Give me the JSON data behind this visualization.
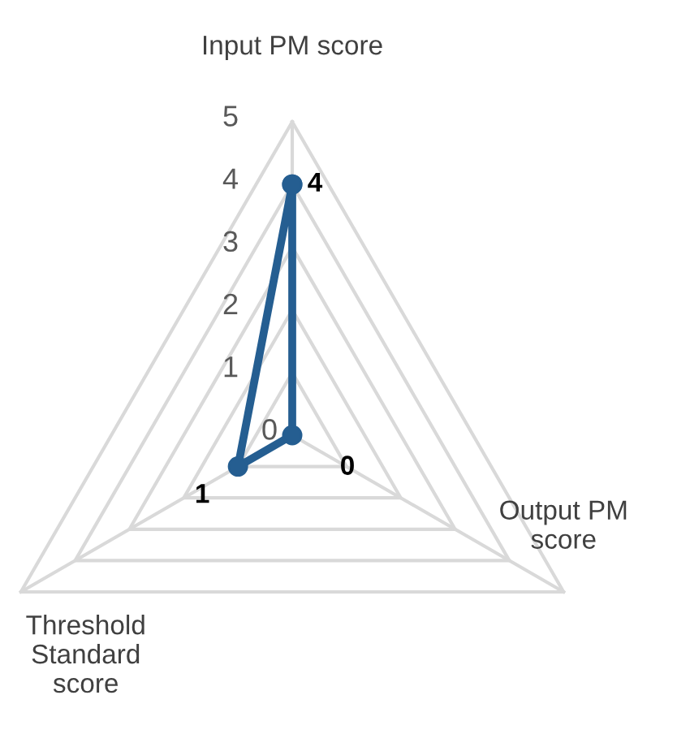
{
  "chart_data": {
    "type": "radar",
    "categories": [
      "Input PM score",
      "Output PM score",
      "Threshold Standard score"
    ],
    "series": [
      {
        "color": "#255e91",
        "values": [
          4,
          0,
          1
        ]
      }
    ],
    "ylim": [
      0,
      5
    ],
    "yticks": [
      0,
      1,
      2,
      3,
      4,
      5
    ],
    "grid": true,
    "marker": "circle",
    "line_style": "solid",
    "data_labels": true
  }
}
